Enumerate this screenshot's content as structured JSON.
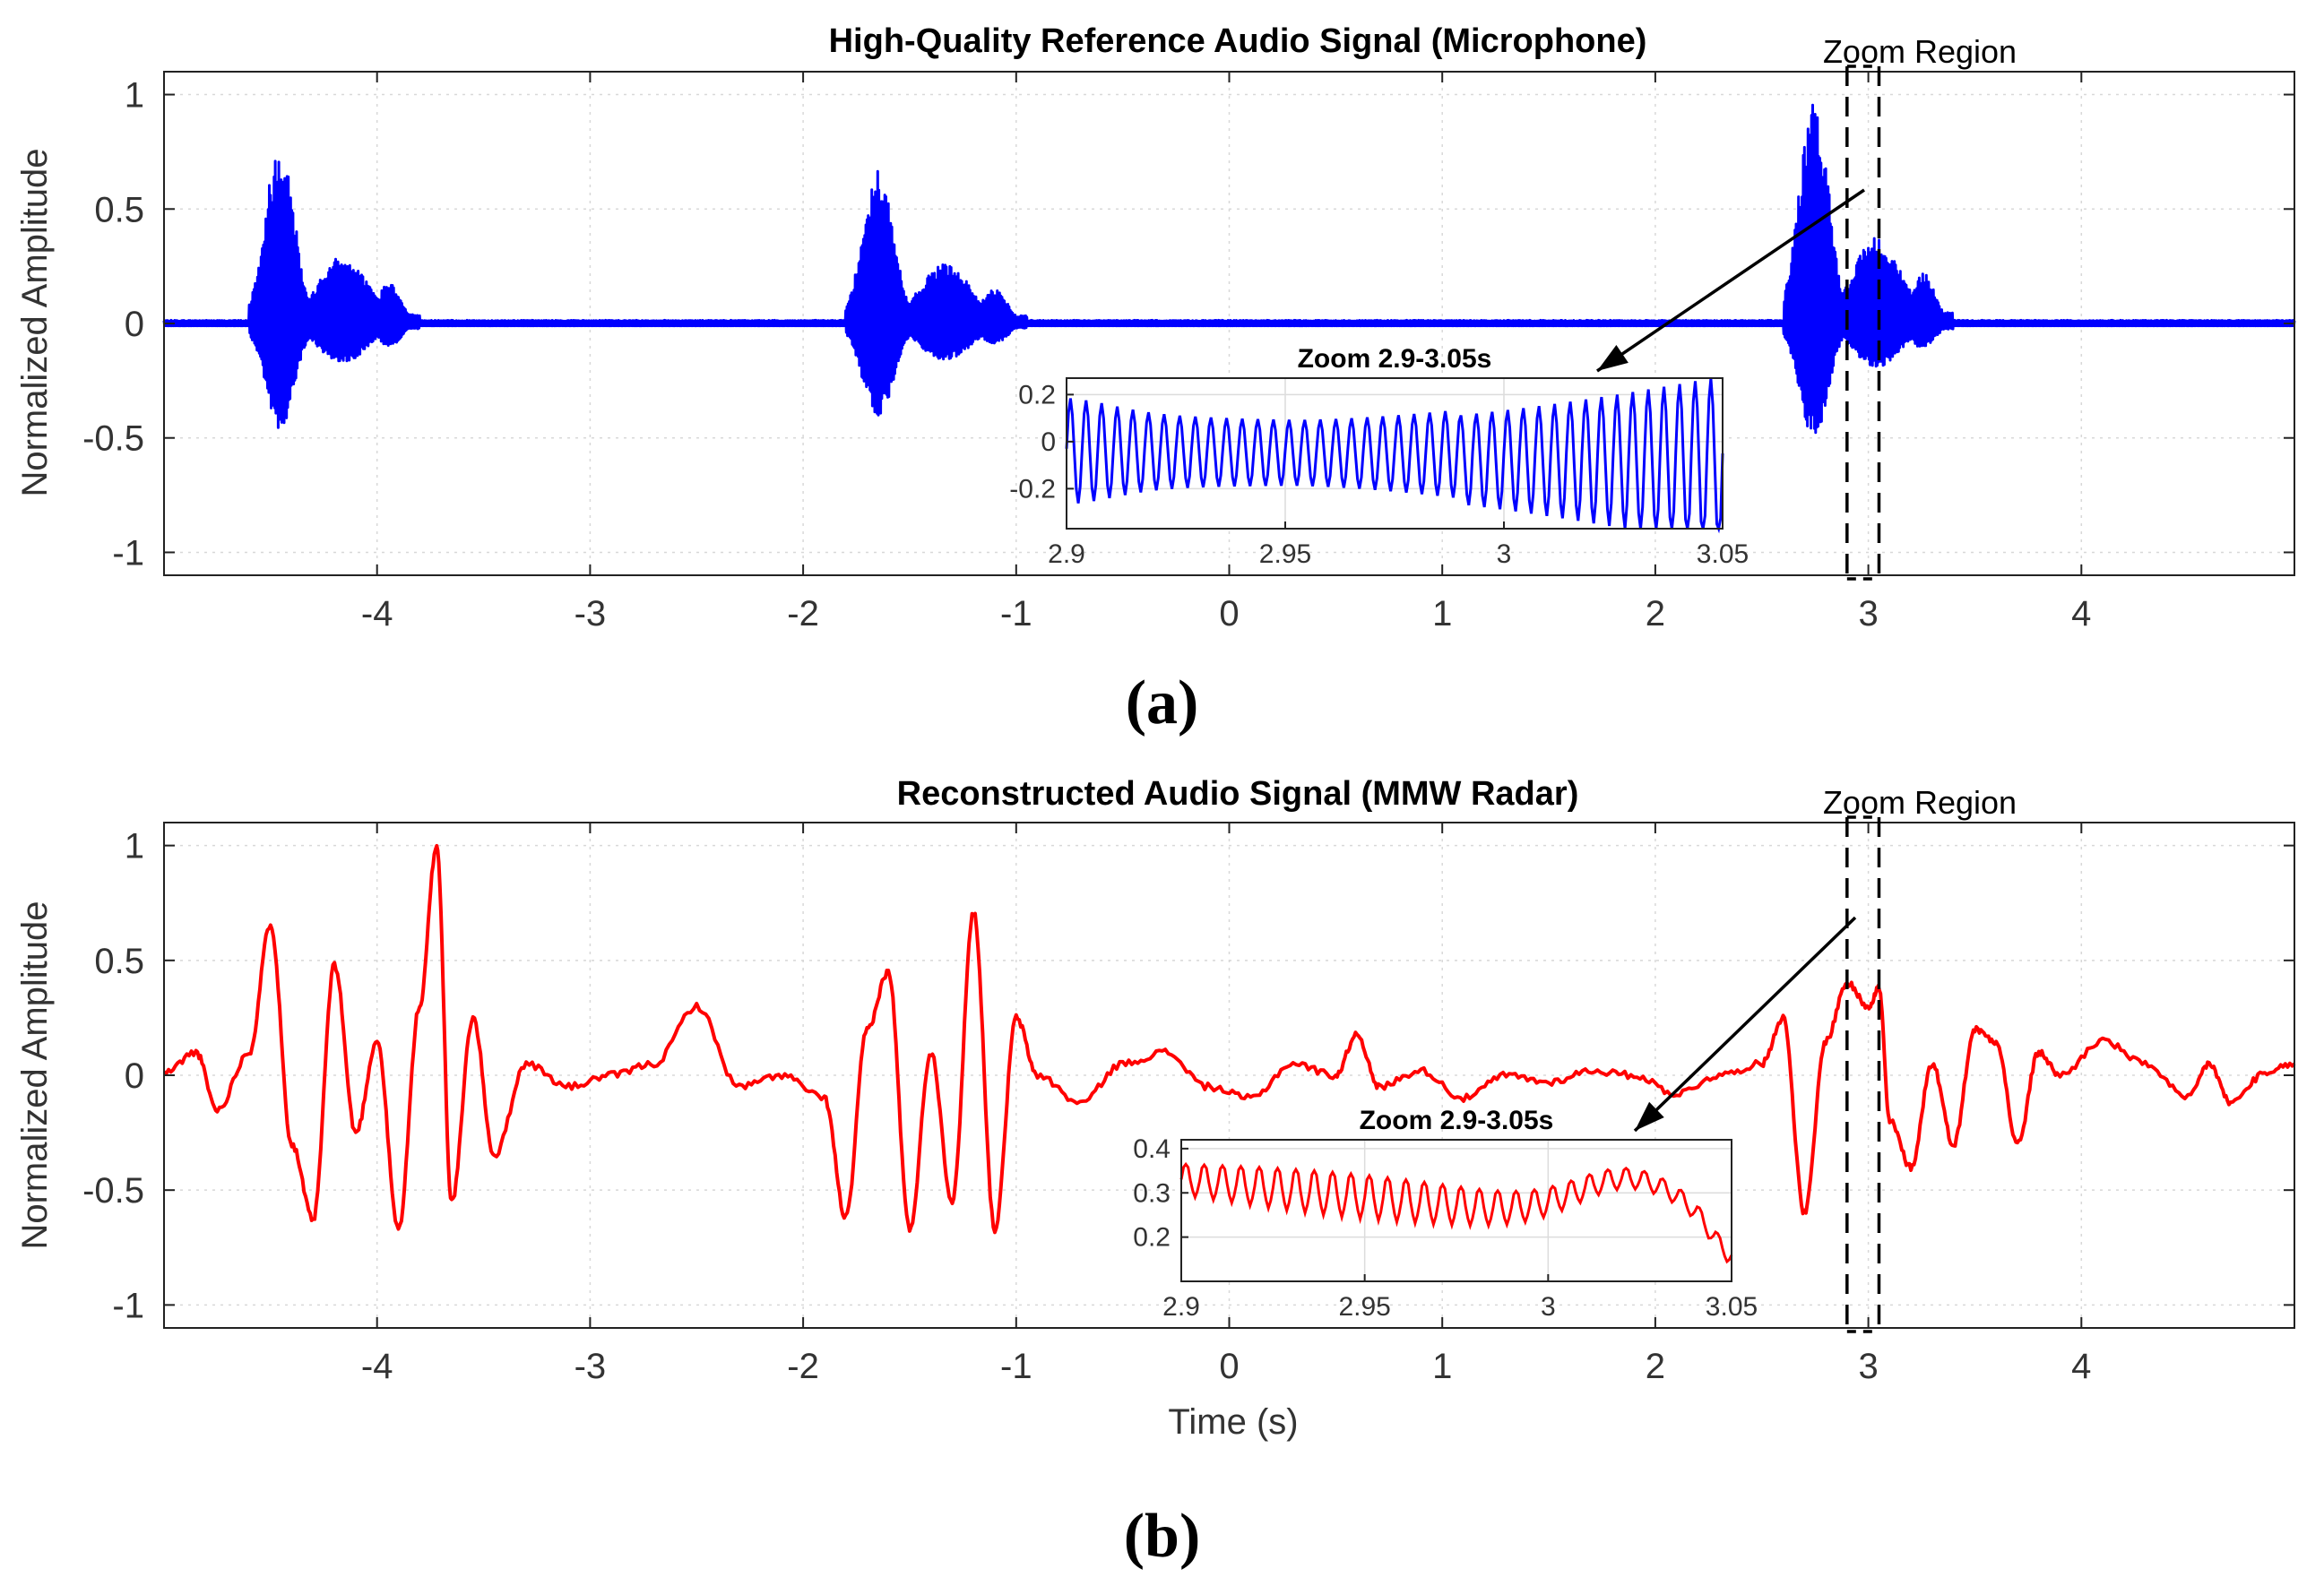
{
  "chart_data": [
    {
      "type": "line",
      "title": "High-Quality Reference Audio Signal (Microphone)",
      "xlabel": "",
      "ylabel": "Normalized Amplitude",
      "xlim": [
        -5,
        5
      ],
      "ylim": [
        -1.1,
        1.1
      ],
      "xticks": [
        -4,
        -3,
        -2,
        -1,
        0,
        1,
        2,
        3,
        4
      ],
      "xtick_labels": [
        "-4",
        "-3",
        "-2",
        "-1",
        "0",
        "1",
        "2",
        "3",
        "4"
      ],
      "yticks": [
        -1,
        -0.5,
        0,
        0.5,
        1
      ],
      "ytick_labels": [
        "-1",
        "-0.5",
        "0",
        "0.5",
        "1"
      ],
      "grid": true,
      "color": "#0000ff",
      "signal_style": "speech-bursts",
      "bursts": [
        {
          "start": -4.6,
          "end": -3.8,
          "peak_pos": 0.79,
          "peak_neg": -0.46
        },
        {
          "start": -1.8,
          "end": -0.95,
          "peak_pos": 0.68,
          "peak_neg": -0.42
        },
        {
          "start": 2.6,
          "end": 3.4,
          "peak_pos": 1.0,
          "peak_neg": -0.5
        }
      ],
      "zoom_region": {
        "label": "Zoom Region",
        "x_start": 2.9,
        "x_end": 3.05
      },
      "inset": {
        "title": "Zoom 2.9-3.05s",
        "xlim": [
          2.9,
          3.05
        ],
        "ylim": [
          -0.37,
          0.27
        ],
        "xticks": [
          2.9,
          2.95,
          3,
          3.05
        ],
        "xtick_labels": [
          "2.9",
          "2.95",
          "3",
          "3.05"
        ],
        "yticks": [
          -0.2,
          0,
          0.2
        ],
        "ytick_labels": [
          "-0.2",
          "0",
          "0.2"
        ],
        "cycles": 42
      },
      "caption": "(a)"
    },
    {
      "type": "line",
      "title": "Reconstructed Audio Signal (MMW Radar)",
      "xlabel": "Time (s)",
      "ylabel": "Normalized Amplitude",
      "xlim": [
        -5,
        5
      ],
      "ylim": [
        -1.1,
        1.1
      ],
      "xticks": [
        -4,
        -3,
        -2,
        -1,
        0,
        1,
        2,
        3,
        4
      ],
      "xtick_labels": [
        "-4",
        "-3",
        "-2",
        "-1",
        "0",
        "1",
        "2",
        "3",
        "4"
      ],
      "yticks": [
        -1,
        -0.5,
        0,
        0.5,
        1
      ],
      "ytick_labels": [
        "-1",
        "-0.5",
        "0",
        "0.5",
        "1"
      ],
      "grid": true,
      "color": "#ff0000",
      "signal_style": "low-frequency-waveform",
      "key_points": [
        [
          -5.0,
          0.01
        ],
        [
          -4.85,
          0.1
        ],
        [
          -4.75,
          -0.15
        ],
        [
          -4.6,
          0.1
        ],
        [
          -4.5,
          0.66
        ],
        [
          -4.4,
          -0.3
        ],
        [
          -4.3,
          -0.63
        ],
        [
          -4.2,
          0.48
        ],
        [
          -4.1,
          -0.25
        ],
        [
          -4.0,
          0.15
        ],
        [
          -3.9,
          -0.67
        ],
        [
          -3.8,
          0.3
        ],
        [
          -3.72,
          1.0
        ],
        [
          -3.65,
          -0.55
        ],
        [
          -3.55,
          0.25
        ],
        [
          -3.45,
          -0.35
        ],
        [
          -3.3,
          0.05
        ],
        [
          -3.1,
          -0.05
        ],
        [
          -2.9,
          0.0
        ],
        [
          -2.7,
          0.05
        ],
        [
          -2.5,
          0.3
        ],
        [
          -2.3,
          -0.05
        ],
        [
          -2.1,
          0.0
        ],
        [
          -1.9,
          -0.1
        ],
        [
          -1.8,
          -0.62
        ],
        [
          -1.7,
          0.2
        ],
        [
          -1.6,
          0.45
        ],
        [
          -1.5,
          -0.67
        ],
        [
          -1.4,
          0.1
        ],
        [
          -1.3,
          -0.55
        ],
        [
          -1.2,
          0.71
        ],
        [
          -1.1,
          -0.67
        ],
        [
          -1.0,
          0.25
        ],
        [
          -0.9,
          0.0
        ],
        [
          -0.7,
          -0.12
        ],
        [
          -0.5,
          0.05
        ],
        [
          -0.3,
          0.1
        ],
        [
          -0.1,
          -0.05
        ],
        [
          0.1,
          -0.1
        ],
        [
          0.3,
          0.05
        ],
        [
          0.5,
          0.0
        ],
        [
          0.6,
          0.18
        ],
        [
          0.7,
          -0.05
        ],
        [
          0.9,
          0.02
        ],
        [
          1.1,
          -0.1
        ],
        [
          1.3,
          0.0
        ],
        [
          1.5,
          -0.03
        ],
        [
          1.7,
          0.02
        ],
        [
          1.9,
          0.0
        ],
        [
          2.1,
          -0.08
        ],
        [
          2.3,
          0.0
        ],
        [
          2.5,
          0.05
        ],
        [
          2.6,
          0.25
        ],
        [
          2.7,
          -0.6
        ],
        [
          2.8,
          0.15
        ],
        [
          2.9,
          0.4
        ],
        [
          3.0,
          0.3
        ],
        [
          3.05,
          0.38
        ],
        [
          3.1,
          -0.2
        ],
        [
          3.2,
          -0.4
        ],
        [
          3.3,
          0.05
        ],
        [
          3.4,
          -0.3
        ],
        [
          3.5,
          0.2
        ],
        [
          3.6,
          0.15
        ],
        [
          3.7,
          -0.3
        ],
        [
          3.8,
          0.1
        ],
        [
          3.9,
          0.0
        ],
        [
          4.1,
          0.15
        ],
        [
          4.3,
          0.05
        ],
        [
          4.5,
          -0.1
        ],
        [
          4.6,
          0.05
        ],
        [
          4.7,
          -0.12
        ],
        [
          4.85,
          0.0
        ],
        [
          5.0,
          0.05
        ]
      ],
      "zoom_region": {
        "label": "Zoom Region",
        "x_start": 2.9,
        "x_end": 3.05
      },
      "inset": {
        "title": "Zoom 2.9-3.05s",
        "xlim": [
          2.9,
          3.05
        ],
        "ylim": [
          0.1,
          0.42
        ],
        "xticks": [
          2.9,
          2.95,
          3,
          3.05
        ],
        "xtick_labels": [
          "2.9",
          "2.95",
          "3",
          "3.05"
        ],
        "yticks": [
          0.2,
          0.3,
          0.4
        ],
        "ytick_labels": [
          "0.2",
          "0.3",
          "0.4"
        ],
        "cycles": 30
      },
      "caption": "(b)"
    }
  ]
}
